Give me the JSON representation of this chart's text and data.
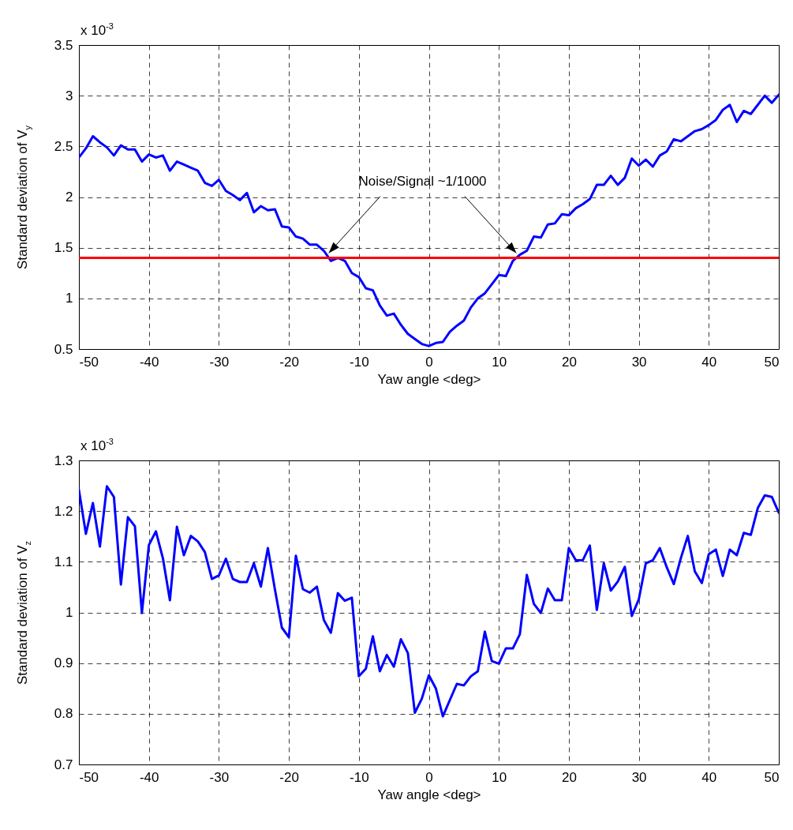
{
  "chart_data": [
    {
      "type": "line",
      "xlabel": "Yaw angle <deg>",
      "ylabel": "Standard deviation of V$_{y}$",
      "annotations": [
        "x 10$^{-3}$"
      ],
      "x": [
        -50,
        -49,
        -48,
        -47,
        -46,
        -45,
        -44,
        -43,
        -42,
        -41,
        -40,
        -39,
        -38,
        -37,
        -36,
        -35,
        -34,
        -33,
        -32,
        -31,
        -30,
        -29,
        -28,
        -27,
        -26,
        -25,
        -24,
        -23,
        -22,
        -21,
        -20,
        -19,
        -18,
        -17,
        -16,
        -15,
        -14,
        -13,
        -12,
        -11,
        -10,
        -9,
        -8,
        -7,
        -6,
        -5,
        -4,
        -3,
        -2,
        -1,
        0,
        1,
        2,
        3,
        4,
        5,
        6,
        7,
        8,
        9,
        10,
        11,
        12,
        13,
        14,
        15,
        16,
        17,
        18,
        19,
        20,
        21,
        22,
        23,
        24,
        25,
        26,
        27,
        28,
        29,
        30,
        31,
        32,
        33,
        34,
        35,
        36,
        37,
        38,
        39,
        40,
        41,
        42,
        43,
        44,
        45,
        46,
        47,
        48,
        49,
        50
      ],
      "series": [
        {
          "color": "#0000ff",
          "values": [
            2.39,
            2.48,
            2.6,
            2.54,
            2.49,
            2.41,
            2.51,
            2.47,
            2.47,
            2.35,
            2.42,
            2.39,
            2.41,
            2.26,
            2.35,
            2.32,
            2.29,
            2.26,
            2.14,
            2.11,
            2.17,
            2.06,
            2.02,
            1.97,
            2.04,
            1.85,
            1.91,
            1.87,
            1.88,
            1.71,
            1.7,
            1.61,
            1.59,
            1.53,
            1.53,
            1.47,
            1.37,
            1.4,
            1.37,
            1.25,
            1.21,
            1.1,
            1.08,
            0.93,
            0.83,
            0.85,
            0.74,
            0.65,
            0.6,
            0.55,
            0.53,
            0.56,
            0.57,
            0.67,
            0.73,
            0.78,
            0.91,
            1.0,
            1.05,
            1.14,
            1.23,
            1.22,
            1.37,
            1.43,
            1.47,
            1.61,
            1.6,
            1.73,
            1.74,
            1.83,
            1.82,
            1.89,
            1.93,
            1.98,
            2.12,
            2.12,
            2.21,
            2.12,
            2.19,
            2.38,
            2.31,
            2.37,
            2.3,
            2.41,
            2.45,
            2.57,
            2.55,
            2.6,
            2.65,
            2.67,
            2.71,
            2.76,
            2.86,
            2.91,
            2.74,
            2.85,
            2.82,
            2.91,
            3.0,
            2.93,
            3.01
          ]
        }
      ],
      "ref_lines": [
        {
          "axis": "y",
          "value": 1.4,
          "label": "Noise/Signal ~1/1000",
          "color": "#ff0000"
        }
      ],
      "xlim": [
        -50,
        50
      ],
      "xticks": [
        -50,
        -40,
        -30,
        -20,
        -10,
        0,
        10,
        20,
        30,
        40,
        50
      ],
      "ylim": [
        0.5,
        3.5
      ],
      "yticks": [
        0.5,
        1,
        1.5,
        2,
        2.5,
        3,
        3.5
      ],
      "grid": true,
      "line_style": "solid",
      "marker": "none"
    },
    {
      "type": "line",
      "xlabel": "Yaw angle <deg>",
      "ylabel": "Standard deviation of V$_{z}$",
      "annotations": [
        "x 10$^{-3}$"
      ],
      "x": [
        -50,
        -49,
        -48,
        -47,
        -46,
        -45,
        -44,
        -43,
        -42,
        -41,
        -40,
        -39,
        -38,
        -37,
        -36,
        -35,
        -34,
        -33,
        -32,
        -31,
        -30,
        -29,
        -28,
        -27,
        -26,
        -25,
        -24,
        -23,
        -22,
        -21,
        -20,
        -19,
        -18,
        -17,
        -16,
        -15,
        -14,
        -13,
        -12,
        -11,
        -10,
        -9,
        -8,
        -7,
        -6,
        -5,
        -4,
        -3,
        -2,
        -1,
        0,
        1,
        2,
        3,
        4,
        5,
        6,
        7,
        8,
        9,
        10,
        11,
        12,
        13,
        14,
        15,
        16,
        17,
        18,
        19,
        20,
        21,
        22,
        23,
        24,
        25,
        26,
        27,
        28,
        29,
        30,
        31,
        32,
        33,
        34,
        35,
        36,
        37,
        38,
        39,
        40,
        41,
        42,
        43,
        44,
        45,
        46,
        47,
        48,
        49,
        50
      ],
      "series": [
        {
          "color": "#0000ff",
          "values": [
            1.242,
            1.155,
            1.216,
            1.13,
            1.249,
            1.228,
            1.055,
            1.188,
            1.17,
            0.999,
            1.133,
            1.16,
            1.107,
            1.024,
            1.169,
            1.113,
            1.151,
            1.14,
            1.119,
            1.066,
            1.073,
            1.106,
            1.066,
            1.06,
            1.06,
            1.097,
            1.051,
            1.127,
            1.046,
            0.97,
            0.951,
            1.112,
            1.046,
            1.039,
            1.051,
            0.985,
            0.96,
            1.038,
            1.023,
            1.029,
            0.874,
            0.889,
            0.953,
            0.884,
            0.916,
            0.893,
            0.947,
            0.92,
            0.802,
            0.83,
            0.876,
            0.85,
            0.795,
            0.827,
            0.859,
            0.856,
            0.874,
            0.884,
            0.962,
            0.904,
            0.899,
            0.929,
            0.929,
            0.957,
            1.074,
            1.017,
            0.999,
            1.047,
            1.024,
            1.024,
            1.127,
            1.103,
            1.103,
            1.132,
            1.005,
            1.097,
            1.043,
            1.061,
            1.09,
            0.993,
            1.026,
            1.097,
            1.103,
            1.127,
            1.089,
            1.056,
            1.107,
            1.151,
            1.081,
            1.058,
            1.115,
            1.124,
            1.072,
            1.124,
            1.113,
            1.157,
            1.153,
            1.206,
            1.231,
            1.228,
            1.197
          ]
        }
      ],
      "xlim": [
        -50,
        50
      ],
      "xticks": [
        -50,
        -40,
        -30,
        -20,
        -10,
        0,
        10,
        20,
        30,
        40,
        50
      ],
      "ylim": [
        0.7,
        1.3
      ],
      "yticks": [
        0.7,
        0.8,
        0.9,
        1,
        1.1,
        1.2,
        1.3
      ],
      "grid": true,
      "line_style": "solid",
      "marker": "none"
    }
  ]
}
